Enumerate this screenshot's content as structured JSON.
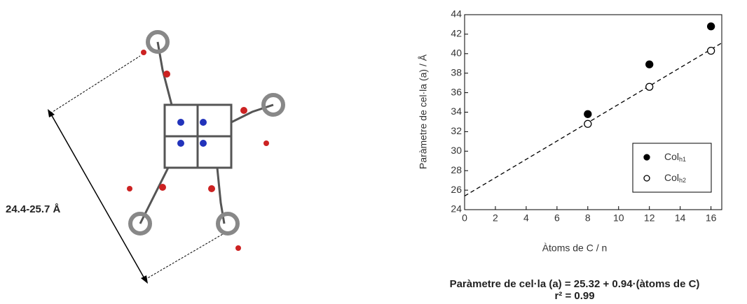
{
  "molecule_label": "24.4-25.7 Å",
  "equation": "Paràmetre de cel·la (a) = 25.32 + 0.94·(àtoms de C)",
  "r_squared": "r² = 0.99",
  "chart_data": {
    "type": "scatter",
    "x_label": "Àtoms de C / n",
    "y_label": "Paràmetre de cel·la (a) / Å",
    "x": [
      8,
      12,
      16
    ],
    "series": [
      {
        "name": "Col",
        "name_sub": "h1",
        "color": "#000000",
        "filled": true,
        "values": [
          33.8,
          38.9,
          42.8
        ]
      },
      {
        "name": "Col",
        "name_sub": "h2",
        "color": "#000000",
        "filled": false,
        "values": [
          32.8,
          36.6,
          40.3
        ]
      }
    ],
    "trend_line": {
      "x": [
        0,
        16.7
      ],
      "values": [
        25.4,
        41.1
      ],
      "color": "#000000"
    },
    "xlim": [
      0,
      16.7
    ],
    "xticks": [
      0,
      2,
      4,
      6,
      8,
      10,
      12,
      14,
      16
    ],
    "ylim": [
      24,
      44
    ],
    "yticks": [
      24,
      26,
      28,
      30,
      32,
      34,
      36,
      38,
      40,
      42,
      44
    ],
    "legend": "lower right"
  }
}
